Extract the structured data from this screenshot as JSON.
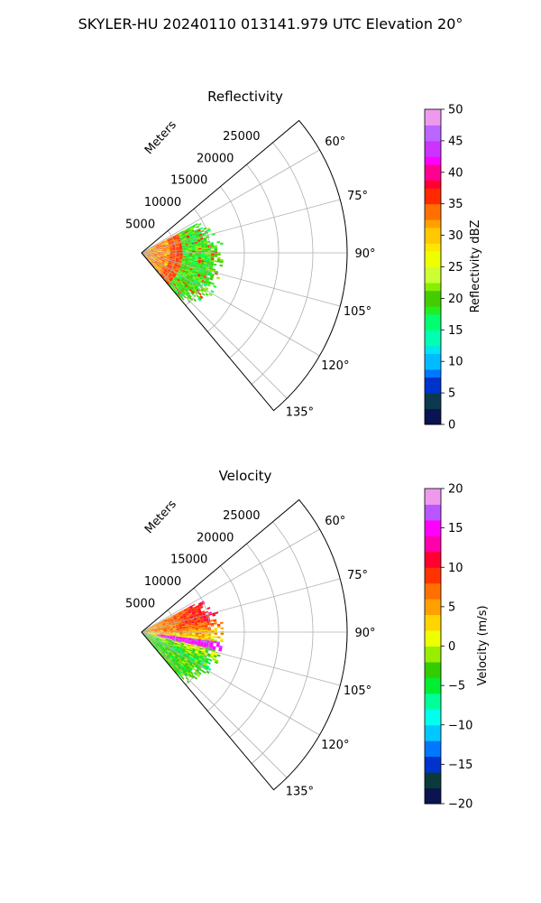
{
  "figure": {
    "title": "SKYLER-HU  20240110  013141.979 UTC Elevation 20°"
  },
  "chart_data": [
    {
      "type": "heatmap",
      "title": "Reflectivity",
      "radial_axis_label": "Meters",
      "radial_ticks": [
        "5000",
        "10000",
        "15000",
        "20000",
        "25000"
      ],
      "angle_ticks": [
        "60°",
        "75°",
        "90°",
        "105°",
        "120°",
        "135°"
      ],
      "angle_range_deg": [
        50,
        140
      ],
      "range_max_m": 30000,
      "colorbar": {
        "label": "Reflectivity dBZ",
        "range": [
          0,
          50
        ],
        "ticks": [
          "0",
          "5",
          "10",
          "15",
          "20",
          "25",
          "30",
          "35",
          "40",
          "45",
          "50"
        ]
      },
      "summary": {
        "echo_max_range_m": 12000,
        "dominant_dbz": 20,
        "band_dbz": 35
      }
    },
    {
      "type": "heatmap",
      "title": "Velocity",
      "radial_axis_label": "Meters",
      "radial_ticks": [
        "5000",
        "10000",
        "15000",
        "20000",
        "25000"
      ],
      "angle_ticks": [
        "60°",
        "75°",
        "90°",
        "105°",
        "120°",
        "135°"
      ],
      "angle_range_deg": [
        50,
        140
      ],
      "range_max_m": 30000,
      "colorbar": {
        "label": "Velocity (m/s)",
        "range": [
          -20,
          20
        ],
        "ticks": [
          "−20",
          "−15",
          "−10",
          "−5",
          "0",
          "5",
          "10",
          "15",
          "20"
        ]
      },
      "summary": {
        "echo_max_range_m": 12000,
        "min_velocity_ms": -12,
        "max_velocity_ms": 14
      }
    }
  ]
}
